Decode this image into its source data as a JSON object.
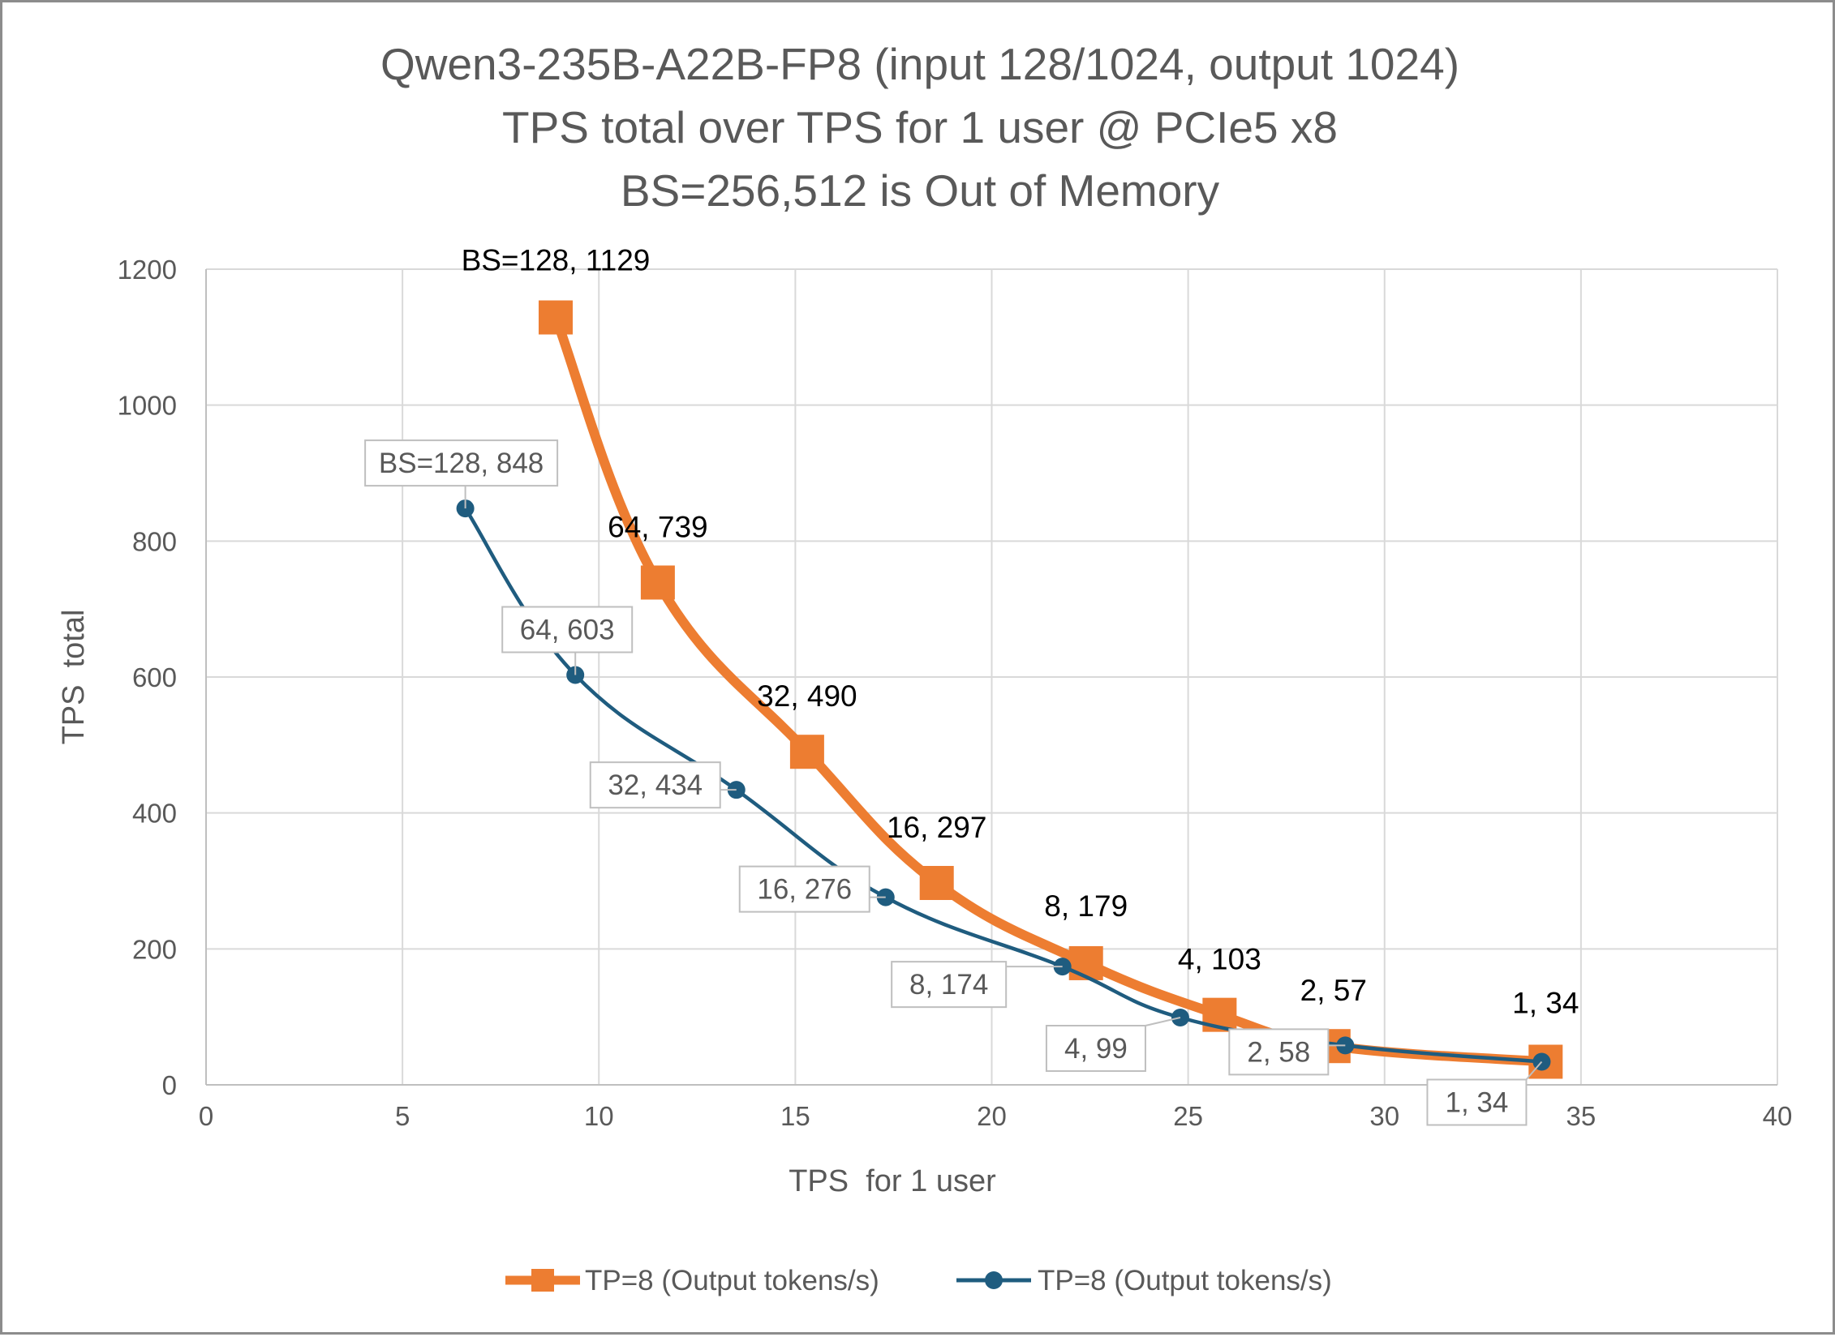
{
  "chart_data": {
    "type": "line",
    "title_lines": [
      "Qwen3-235B-A22B-FP8 (input 128/1024, output 1024)",
      "TPS total over TPS for 1 user @ PCIe5 x8",
      "BS=256,512 is Out of Memory"
    ],
    "xlabel": "TPS  for 1 user",
    "ylabel": "TPS  total",
    "xlim": [
      0,
      40
    ],
    "ylim": [
      0,
      1200
    ],
    "x_ticks": [
      0,
      5,
      10,
      15,
      20,
      25,
      30,
      35,
      40
    ],
    "y_ticks": [
      0,
      200,
      400,
      600,
      800,
      1000,
      1200
    ],
    "grid": true,
    "legend_position": "bottom",
    "series": [
      {
        "name": "TP=8 (Output tokens/s)",
        "color": "#ED7D31",
        "marker": "square",
        "x": [
          8.9,
          11.5,
          15.3,
          18.6,
          22.4,
          25.8,
          28.7,
          34.1
        ],
        "y": [
          1129,
          739,
          490,
          297,
          179,
          103,
          57,
          34
        ],
        "labels": [
          "BS=128, 1129",
          "64, 739",
          "32, 490",
          "16, 297",
          "8, 179",
          "4, 103",
          "2, 57",
          "1, 34"
        ]
      },
      {
        "name": "TP=8 (Output tokens/s)",
        "color": "#1F5C7F",
        "marker": "circle",
        "x": [
          6.6,
          9.4,
          13.5,
          17.3,
          21.8,
          24.8,
          29.0,
          34.0
        ],
        "y": [
          848,
          603,
          434,
          276,
          174,
          99,
          58,
          34
        ],
        "labels": [
          "BS=128, 848",
          "64, 603",
          "32, 434",
          "16, 276",
          "8, 174",
          "4, 99",
          "2, 58",
          "1, 34"
        ]
      }
    ]
  }
}
